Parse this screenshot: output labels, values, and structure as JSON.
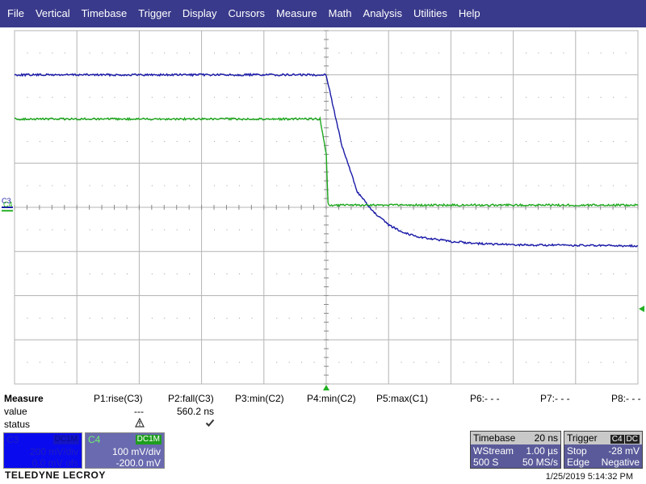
{
  "menu": [
    "File",
    "Vertical",
    "Timebase",
    "Trigger",
    "Display",
    "Cursors",
    "Measure",
    "Math",
    "Analysis",
    "Utilities",
    "Help"
  ],
  "colors": {
    "menubar": "#3a3a8c",
    "c3_trace": "#1a1aa8",
    "c4_trace": "#1ea81e",
    "grid": "#b4b4b4",
    "c4_marker": "#22b022"
  },
  "grid": {
    "divisions_x": 10,
    "divisions_y": 8
  },
  "channel_labels": {
    "c3": "C3",
    "c4": "C4"
  },
  "chart_data": {
    "type": "line",
    "x_unit": "ns",
    "x_range": [
      -100,
      100
    ],
    "series": [
      {
        "name": "C3",
        "ydiv_per": 200,
        "y_unit": "mV",
        "points": [
          [
            -100,
            600
          ],
          [
            0,
            600
          ],
          [
            5,
            280
          ],
          [
            10,
            70
          ],
          [
            15,
            -20
          ],
          [
            20,
            -80
          ],
          [
            25,
            -115
          ],
          [
            30,
            -135
          ],
          [
            40,
            -155
          ],
          [
            50,
            -165
          ],
          [
            60,
            -170
          ],
          [
            100,
            -175
          ]
        ]
      },
      {
        "name": "C4",
        "ydiv_per": 100,
        "y_unit": "mV",
        "points": [
          [
            -100,
            200
          ],
          [
            -2,
            200
          ],
          [
            0,
            120
          ],
          [
            0.6,
            5
          ],
          [
            100,
            5
          ]
        ]
      }
    ]
  },
  "measure": {
    "header": "Measure",
    "params": [
      "P1:rise(C3)",
      "P2:fall(C3)",
      "P3:min(C2)",
      "P4:min(C2)",
      "P5:max(C1)",
      "P6:- - -",
      "P7:- - -",
      "P8:- - -"
    ],
    "value_label": "value",
    "status_label": "status",
    "values": [
      "---",
      "560.2 ns"
    ],
    "status_icons": [
      "warning-icon",
      "checkmark-icon"
    ]
  },
  "channels": {
    "c3": {
      "name": "C3",
      "coupling": "DC1M",
      "vdiv": "200 mV/div",
      "offset": "0.0 mV ofs"
    },
    "c4": {
      "name": "C4",
      "coupling": "DC1M",
      "vdiv": "100 mV/div",
      "offset": "-200.0 mV"
    }
  },
  "timebase": {
    "label": "Timebase",
    "value": "20 ns",
    "mode": "WStream",
    "mode_value": "1.00 µs",
    "samples": "500 S",
    "rate": "50 MS/s"
  },
  "trigger": {
    "label": "Trigger",
    "channel": "C4",
    "coupling": "DC",
    "state": "Stop",
    "level": "-28 mV",
    "type": "Edge",
    "slope": "Negative"
  },
  "brand": "TELEDYNE LECROY",
  "timestamp": "1/25/2019 5:14:32 PM"
}
